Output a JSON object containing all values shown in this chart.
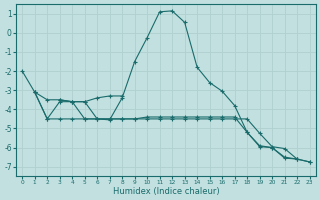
{
  "xlabel": "Humidex (Indice chaleur)",
  "xlim": [
    -0.5,
    23.5
  ],
  "ylim": [
    -7.5,
    1.5
  ],
  "yticks": [
    -7,
    -6,
    -5,
    -4,
    -3,
    -2,
    -1,
    0,
    1
  ],
  "xticks": [
    0,
    1,
    2,
    3,
    4,
    5,
    6,
    7,
    8,
    9,
    10,
    11,
    12,
    13,
    14,
    15,
    16,
    17,
    18,
    19,
    20,
    21,
    22,
    23
  ],
  "bg_color": "#c2e0e0",
  "line_color": "#1a6b6b",
  "grid_color": "#b0d0d0",
  "curve1_x": [
    0,
    1,
    2,
    3,
    4,
    5,
    6,
    7,
    8,
    9,
    10,
    11,
    12,
    13,
    14,
    15,
    16,
    17,
    18,
    19,
    20,
    21,
    22
  ],
  "curve1_y": [
    -2.0,
    -3.1,
    -3.5,
    -3.5,
    -3.6,
    -4.5,
    -4.5,
    -4.55,
    -3.4,
    -1.5,
    -0.25,
    1.1,
    1.15,
    0.55,
    -1.8,
    -2.6,
    -3.05,
    -3.8,
    -5.2,
    -5.95,
    -6.0,
    -6.55,
    -6.6
  ],
  "curve2_x": [
    1,
    2,
    3,
    4,
    5,
    6,
    7,
    8,
    9,
    10,
    11,
    12,
    13,
    14,
    15,
    16,
    17,
    18,
    19,
    20,
    21,
    22,
    23
  ],
  "curve2_y": [
    -3.1,
    -4.5,
    -4.5,
    -4.5,
    -4.5,
    -4.5,
    -4.5,
    -4.5,
    -4.5,
    -4.4,
    -4.4,
    -4.4,
    -4.4,
    -4.4,
    -4.4,
    -4.4,
    -4.4,
    -5.2,
    -5.9,
    -6.0,
    -6.5,
    -6.6,
    -6.75
  ],
  "curve3_x": [
    1,
    2,
    3,
    4,
    5,
    6,
    7,
    8,
    9,
    10,
    11,
    12,
    13,
    14,
    15,
    16,
    17,
    18,
    19,
    20,
    21,
    22,
    23
  ],
  "curve3_y": [
    -3.1,
    -4.5,
    -3.6,
    -3.6,
    -3.6,
    -4.5,
    -4.5,
    -4.5,
    -4.5,
    -4.5,
    -4.5,
    -4.5,
    -4.5,
    -4.5,
    -4.5,
    -4.5,
    -4.5,
    -4.5,
    -5.25,
    -5.95,
    -6.05,
    -6.6,
    -6.75
  ],
  "curve4_x": [
    3,
    4,
    5,
    6,
    7,
    8
  ],
  "curve4_y": [
    -3.5,
    -3.6,
    -3.6,
    -3.4,
    -3.3,
    -3.3
  ]
}
